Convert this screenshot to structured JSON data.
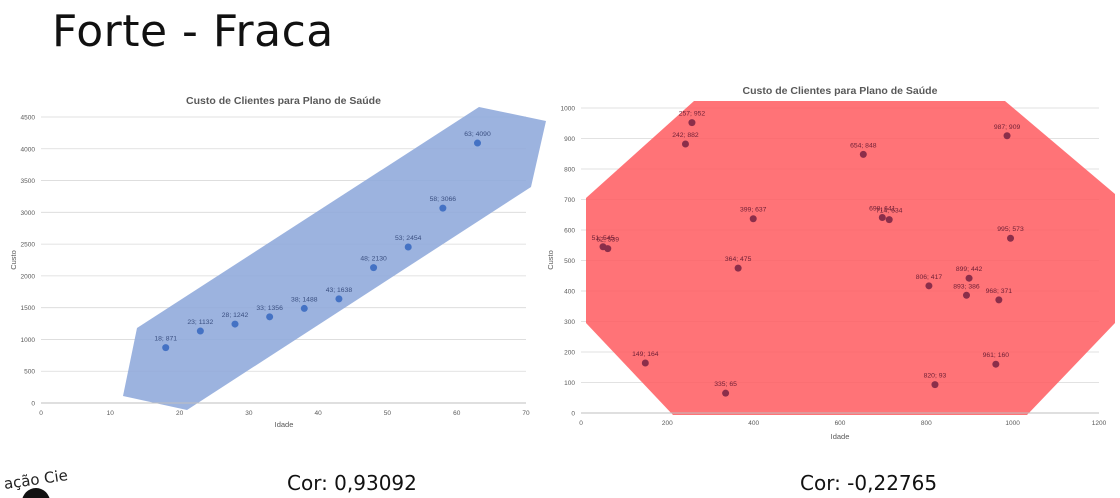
{
  "slide": {
    "title": "Forte - Fraca"
  },
  "correlations": [
    {
      "label": "Cor: 0,93092"
    },
    {
      "label": "Cor: -0,22765"
    }
  ],
  "colors": {
    "band_blue": "#8ea9db",
    "band_red": "#ff5a5f",
    "point_blue": "#4472c4",
    "point_red": "#8b2e4a"
  },
  "logo": {
    "text": "ação Cie"
  },
  "chart_data": [
    {
      "type": "scatter",
      "title": "Custo de Clientes para Plano de Saúde",
      "xlabel": "Idade",
      "ylabel": "Custo",
      "xlim": [
        0,
        70
      ],
      "ylim": [
        0,
        4500
      ],
      "xticks": [
        0,
        10,
        20,
        30,
        40,
        50,
        60,
        70
      ],
      "yticks": [
        0,
        500,
        1000,
        1500,
        2000,
        2500,
        3000,
        3500,
        4000,
        4500
      ],
      "grid": true,
      "points": [
        {
          "x": 18,
          "y": 871,
          "label": "18; 871"
        },
        {
          "x": 23,
          "y": 1132,
          "label": "23; 1132"
        },
        {
          "x": 28,
          "y": 1242,
          "label": "28; 1242"
        },
        {
          "x": 33,
          "y": 1356,
          "label": "33; 1356"
        },
        {
          "x": 38,
          "y": 1488,
          "label": "38; 1488"
        },
        {
          "x": 43,
          "y": 1638,
          "label": "43; 1638"
        },
        {
          "x": 48,
          "y": 2130,
          "label": "48; 2130"
        },
        {
          "x": 53,
          "y": 2454,
          "label": "53; 2454"
        },
        {
          "x": 58,
          "y": 3066,
          "label": "58; 3066"
        },
        {
          "x": 63,
          "y": 4090,
          "label": "63; 4090"
        }
      ]
    },
    {
      "type": "scatter",
      "title": "Custo de Clientes para Plano de Saúde",
      "xlabel": "Idade",
      "ylabel": "Custo",
      "xlim": [
        0,
        1200
      ],
      "ylim": [
        0,
        1000
      ],
      "xticks": [
        0,
        200,
        400,
        600,
        800,
        1000,
        1200
      ],
      "yticks": [
        0,
        100,
        200,
        300,
        400,
        500,
        600,
        700,
        800,
        900,
        1000
      ],
      "grid": true,
      "points": [
        {
          "x": 257,
          "y": 952,
          "label": "257; 952"
        },
        {
          "x": 242,
          "y": 882,
          "label": "242; 882"
        },
        {
          "x": 654,
          "y": 848,
          "label": "654; 848"
        },
        {
          "x": 987,
          "y": 909,
          "label": "987; 909"
        },
        {
          "x": 399,
          "y": 637,
          "label": "399; 637"
        },
        {
          "x": 698,
          "y": 641,
          "label": "698; 641"
        },
        {
          "x": 714,
          "y": 634,
          "label": "714; 634"
        },
        {
          "x": 995,
          "y": 573,
          "label": "995; 573"
        },
        {
          "x": 51,
          "y": 545,
          "label": "51; 545"
        },
        {
          "x": 62,
          "y": 539,
          "label": "62; 539"
        },
        {
          "x": 364,
          "y": 475,
          "label": "364; 475"
        },
        {
          "x": 806,
          "y": 417,
          "label": "806; 417"
        },
        {
          "x": 899,
          "y": 442,
          "label": "899; 442"
        },
        {
          "x": 893,
          "y": 386,
          "label": "893; 386"
        },
        {
          "x": 968,
          "y": 371,
          "label": "968; 371"
        },
        {
          "x": 149,
          "y": 164,
          "label": "149; 164"
        },
        {
          "x": 961,
          "y": 160,
          "label": "961; 160"
        },
        {
          "x": 335,
          "y": 65,
          "label": "335; 65"
        },
        {
          "x": 820,
          "y": 93,
          "label": "820; 93"
        }
      ]
    }
  ]
}
